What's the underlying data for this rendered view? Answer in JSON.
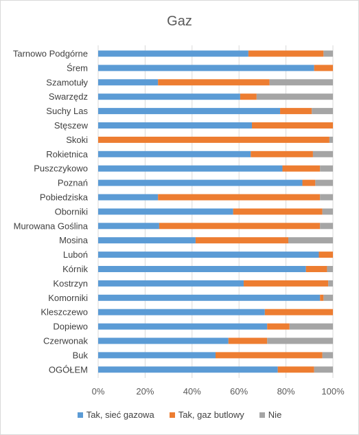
{
  "chart_data": {
    "type": "bar",
    "orientation": "horizontal",
    "stacked": "percent",
    "title": "Gaz",
    "categories": [
      "Tarnowo Podgórne",
      "Śrem",
      "Szamotuły",
      "Swarzędz",
      "Suchy Las",
      "Stęszew",
      "Skoki",
      "Rokietnica",
      "Puszczykowo",
      "Poznań",
      "Pobiedziska",
      "Oborniki",
      "Murowana Goślina",
      "Mosina",
      "Luboń",
      "Kórnik",
      "Kostrzyn",
      "Komorniki",
      "Kleszczewo",
      "Dopiewo",
      "Czerwonak",
      "Buk",
      "OGÓŁEM"
    ],
    "series": [
      {
        "name": "Tak, sieć gazowa",
        "color": "#5b9bd5",
        "values": [
          64,
          92,
          25.5,
          60.5,
          77.5,
          65.5,
          0,
          65,
          78.5,
          87,
          25.5,
          57.5,
          26,
          41.5,
          94,
          88.5,
          62,
          94.5,
          71,
          72,
          55.5,
          50,
          76.5
        ]
      },
      {
        "name": "Tak, gaz butlowy",
        "color": "#ed7d31",
        "values": [
          32,
          8,
          47.5,
          7,
          13.5,
          34.5,
          98.5,
          26.5,
          16,
          5.5,
          69,
          38,
          68.5,
          39.5,
          6,
          9,
          36,
          1.5,
          29,
          9.5,
          16.5,
          45.5,
          15.5
        ]
      },
      {
        "name": "Nie",
        "color": "#a5a5a5",
        "values": [
          4,
          0,
          27,
          32.5,
          9,
          0,
          1.5,
          8.5,
          5.5,
          7.5,
          5.5,
          4.5,
          5.5,
          19,
          0,
          2.5,
          2,
          4,
          0,
          18.5,
          28,
          4.5,
          8
        ]
      }
    ],
    "x_ticks": [
      "0%",
      "20%",
      "40%",
      "60%",
      "80%",
      "100%"
    ],
    "xlim": [
      0,
      100
    ],
    "grid": true,
    "legend_position": "bottom"
  }
}
